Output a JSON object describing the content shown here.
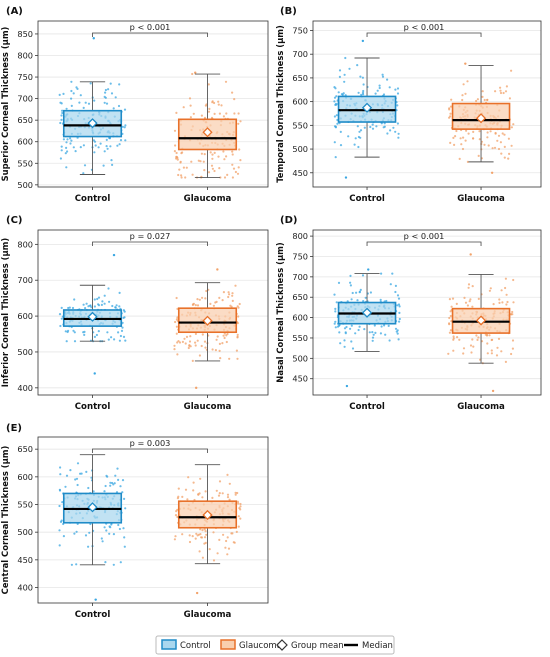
{
  "colors": {
    "control_fill": "#a9d7ee",
    "control_edge": "#1f8bc7",
    "control_dot": "#3aa7e2",
    "glaucoma_fill": "#f9cfae",
    "glaucoma_edge": "#e8712a",
    "glaucoma_dot": "#f2a26a",
    "whisker": "#555555",
    "median": "#000000",
    "grid": "#e6e6e6"
  },
  "legend": {
    "control": "Control",
    "glaucoma": "Glaucoma",
    "mean": "Group mean",
    "median": "Median"
  },
  "chart_data": [
    {
      "type": "box",
      "panel_label": "(A)",
      "ylabel": "Superior Corneal Thickness (µm)",
      "categories": [
        "Control",
        "Glaucoma"
      ],
      "yticks": [
        500,
        550,
        600,
        650,
        700,
        750,
        800,
        850
      ],
      "ylim": [
        495,
        880
      ],
      "p_text": "p < 0.001",
      "series": [
        {
          "name": "Control",
          "whisker_low": 524,
          "q1": 612,
          "median": 638,
          "mean": 643,
          "q3": 672,
          "whisker_high": 739,
          "min": 524,
          "max": 840
        },
        {
          "name": "Glaucoma",
          "whisker_low": 517,
          "q1": 582,
          "median": 608,
          "mean": 622,
          "q3": 652,
          "whisker_high": 757,
          "min": 517,
          "max": 760
        }
      ]
    },
    {
      "type": "box",
      "panel_label": "(B)",
      "ylabel": "Temporal Corneal Thickness (µm)",
      "categories": [
        "Control",
        "Glaucoma"
      ],
      "yticks": [
        450,
        500,
        550,
        600,
        650,
        700,
        750
      ],
      "ylim": [
        420,
        770
      ],
      "p_text": "p < 0.001",
      "series": [
        {
          "name": "Control",
          "whisker_low": 483,
          "q1": 557,
          "median": 582,
          "mean": 587,
          "q3": 611,
          "whisker_high": 692,
          "min": 440,
          "max": 728
        },
        {
          "name": "Glaucoma",
          "whisker_low": 473,
          "q1": 542,
          "median": 561,
          "mean": 565,
          "q3": 596,
          "whisker_high": 676,
          "min": 450,
          "max": 680
        }
      ]
    },
    {
      "type": "box",
      "panel_label": "(C)",
      "ylabel": "Inferior Corneal Thickness (µm)",
      "categories": [
        "Control",
        "Glaucoma"
      ],
      "yticks": [
        400,
        500,
        600,
        700,
        800
      ],
      "ylim": [
        380,
        840
      ],
      "p_text": "p = 0.027",
      "series": [
        {
          "name": "Control",
          "whisker_low": 530,
          "q1": 572,
          "median": 592,
          "mean": 598,
          "q3": 617,
          "whisker_high": 686,
          "min": 440,
          "max": 770
        },
        {
          "name": "Glaucoma",
          "whisker_low": 475,
          "q1": 555,
          "median": 582,
          "mean": 587,
          "q3": 622,
          "whisker_high": 693,
          "min": 400,
          "max": 730
        }
      ]
    },
    {
      "type": "box",
      "panel_label": "(D)",
      "ylabel": "Nasal Corneal Thickness (µm)",
      "categories": [
        "Control",
        "Glaucoma"
      ],
      "yticks": [
        450,
        500,
        550,
        600,
        650,
        700,
        750,
        800
      ],
      "ylim": [
        410,
        815
      ],
      "p_text": "p < 0.001",
      "series": [
        {
          "name": "Control",
          "whisker_low": 517,
          "q1": 585,
          "median": 610,
          "mean": 612,
          "q3": 637,
          "whisker_high": 708,
          "min": 432,
          "max": 718
        },
        {
          "name": "Glaucoma",
          "whisker_low": 488,
          "q1": 562,
          "median": 590,
          "mean": 593,
          "q3": 622,
          "whisker_high": 706,
          "min": 420,
          "max": 755
        }
      ]
    },
    {
      "type": "box",
      "panel_label": "(E)",
      "ylabel": "Central Corneal Thickness (µm)",
      "categories": [
        "Control",
        "Glaucoma"
      ],
      "yticks": [
        400,
        450,
        500,
        550,
        600,
        650
      ],
      "ylim": [
        372,
        672
      ],
      "p_text": "p = 0.003",
      "series": [
        {
          "name": "Control",
          "whisker_low": 441,
          "q1": 517,
          "median": 542,
          "mean": 545,
          "q3": 570,
          "whisker_high": 640,
          "min": 378,
          "max": 640
        },
        {
          "name": "Glaucoma",
          "whisker_low": 443,
          "q1": 508,
          "median": 527,
          "mean": 531,
          "q3": 556,
          "whisker_high": 622,
          "min": 390,
          "max": 622
        }
      ]
    }
  ]
}
